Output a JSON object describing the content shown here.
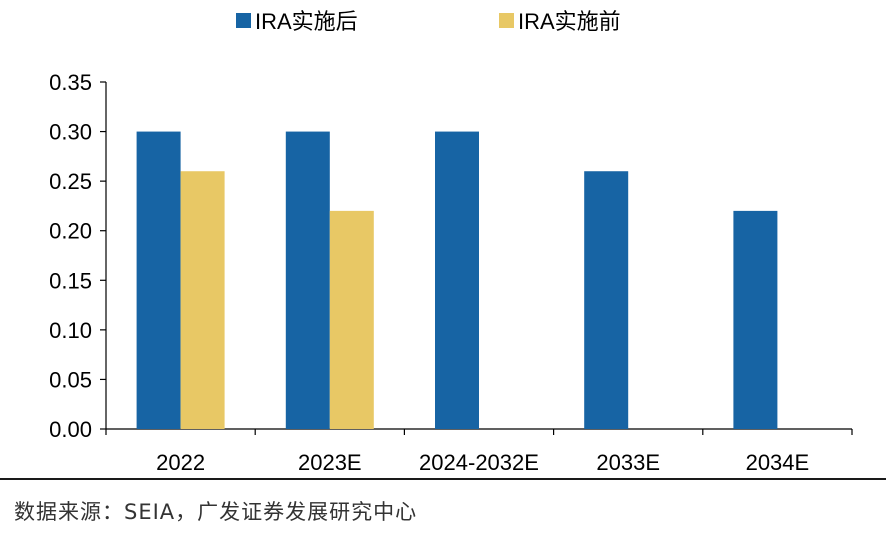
{
  "chart_data": {
    "type": "bar",
    "categories": [
      "2022",
      "2023E",
      "2024-2032E",
      "2033E",
      "2034E"
    ],
    "series": [
      {
        "name": "IRA实施后",
        "color": "#1764a4",
        "values": [
          0.3,
          0.3,
          0.3,
          0.26,
          0.22
        ]
      },
      {
        "name": "IRA实施前",
        "color": "#e8c865",
        "values": [
          0.26,
          0.22,
          null,
          null,
          null
        ]
      }
    ],
    "ylim": [
      0,
      0.35
    ],
    "yticks": [
      "0.00",
      "0.05",
      "0.10",
      "0.15",
      "0.20",
      "0.25",
      "0.30",
      "0.35"
    ],
    "legend_position": "top",
    "grid": false
  },
  "source": "数据来源：SEIA，广发证券发展研究中心"
}
